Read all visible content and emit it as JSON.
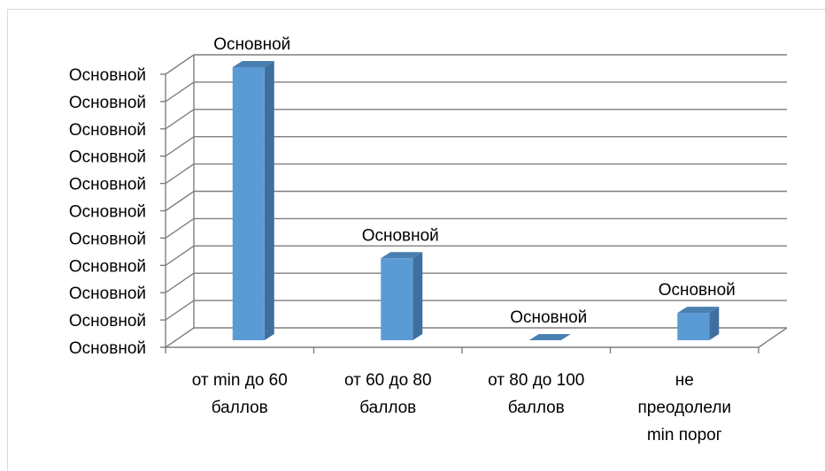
{
  "chart_data": {
    "type": "bar",
    "title": "",
    "xlabel": "",
    "ylabel": "",
    "categories": [
      [
        "от min до 60",
        "баллов"
      ],
      [
        "от 60 до 80",
        "баллов"
      ],
      [
        "от 80 до 100",
        "баллов"
      ],
      [
        "не",
        "преодолели",
        "min порог"
      ]
    ],
    "values": [
      100,
      30,
      0,
      10
    ],
    "data_labels": [
      "Основной",
      "Основной",
      "Основной",
      "Основной"
    ],
    "y_tick_labels": [
      "Основной",
      "Основной",
      "Основной",
      "Основной",
      "Основной",
      "Основной",
      "Основной",
      "Основной",
      "Основной",
      "Основной",
      "Основной"
    ],
    "ylim": [
      0,
      100
    ],
    "grid": true,
    "legend": "none",
    "colors": {
      "bar_front": "#5b9bd5",
      "bar_side": "#3f6f9f",
      "bar_top": "#4a7fb2",
      "grid": "#7f7f7f"
    }
  }
}
